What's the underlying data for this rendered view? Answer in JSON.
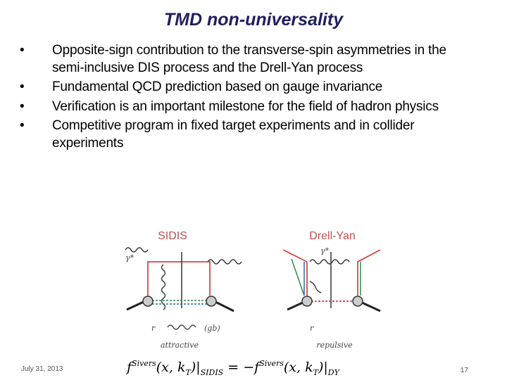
{
  "slide": {
    "title": "TMD non-universality",
    "bullets": [
      "Opposite-sign contribution to the transverse-spin asymmetries in the semi-inclusive DIS process and the Drell-Yan process",
      "Fundamental QCD prediction based on gauge invariance",
      "Verification is an important milestone for the field of hadron physics",
      "Competitive program in fixed target experiments and in collider experiments"
    ],
    "diagrams": [
      {
        "label": "SIDIS",
        "photon": "γ*",
        "remnant": "r",
        "gluon": "(gb)",
        "caption": "attractive"
      },
      {
        "label": "Drell-Yan",
        "photon": "γ*",
        "remnant": "r",
        "caption": "repulsive"
      }
    ],
    "formula": [
      "f",
      "Sivers",
      "(x, k",
      "T",
      ")|",
      "SIDIS",
      " = −f",
      "Sivers",
      "(x, k",
      "T",
      ")|",
      "DY"
    ],
    "footer": {
      "date": "July 31, 2013",
      "page": "17"
    }
  }
}
